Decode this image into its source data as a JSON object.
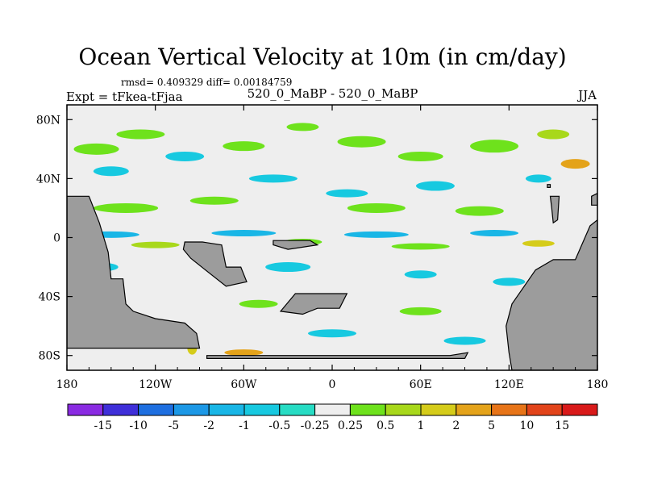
{
  "title": "Ocean Vertical Velocity at 10m (in cm/day)",
  "stats": "rmsd= 0.409329 diff= 0.00184759",
  "experiment": "Expt = tFkea-tFjaa",
  "period": "520_0_MaBP - 520_0_MaBP",
  "season": "JJA",
  "chart_data": {
    "type": "heatmap",
    "title": "Ocean Vertical Velocity at 10m (in cm/day)",
    "x_axis": {
      "range": [
        -180,
        180
      ],
      "ticks": [
        -180,
        -120,
        -60,
        0,
        60,
        120,
        180
      ],
      "tick_labels": [
        "180",
        "120W",
        "60W",
        "0",
        "60E",
        "120E",
        "180"
      ]
    },
    "y_axis": {
      "range": [
        -90,
        90
      ],
      "ticks": [
        80,
        40,
        0,
        -40,
        -80
      ],
      "tick_labels": [
        "80N",
        "40N",
        "0",
        "40S",
        "80S"
      ]
    },
    "colorbar": {
      "levels": [
        "-15",
        "-10",
        "-5",
        "-2",
        "-1",
        "-0.5",
        "-0.25",
        "0.25",
        "0.5",
        "1",
        "2",
        "5",
        "10",
        "15"
      ],
      "colors": [
        "#8a2be2",
        "#3f2fd9",
        "#1e6fe0",
        "#1c98e6",
        "#19b6e6",
        "#17c9e0",
        "#27dcc4",
        "#eeeeee",
        "#6ee21c",
        "#a8d81b",
        "#d5cc1a",
        "#e4a31a",
        "#e77418",
        "#e2441a",
        "#d91a1a"
      ]
    },
    "land_color": "#9c9c9c",
    "background_color": "#eeeeee"
  }
}
